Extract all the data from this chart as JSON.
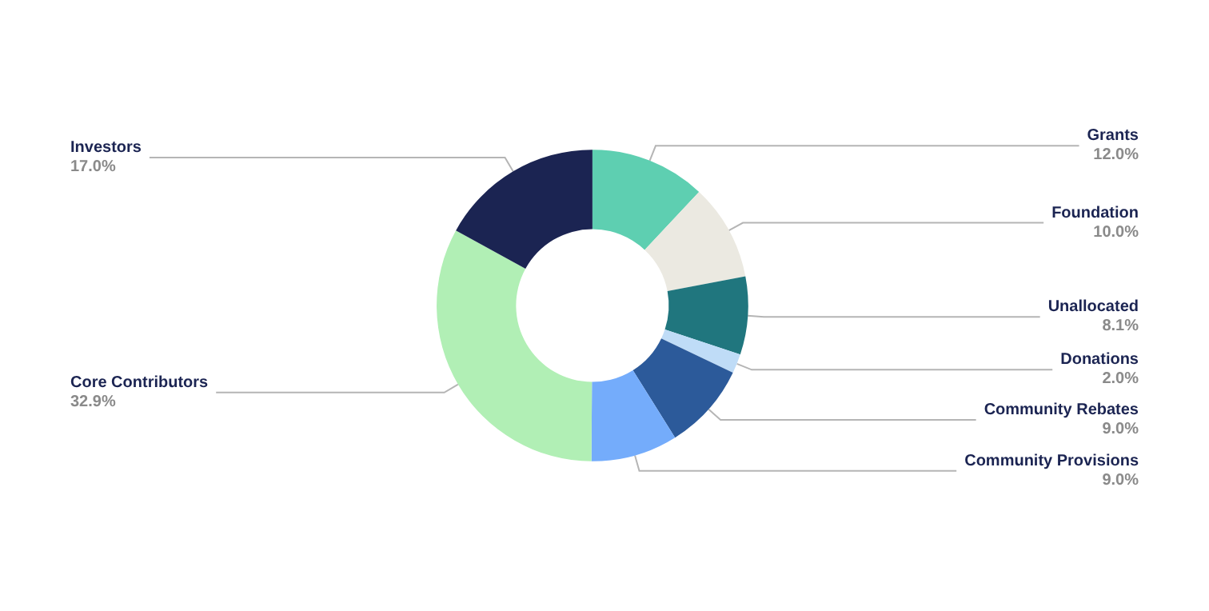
{
  "chart_data": {
    "type": "donut",
    "categories": [
      "Grants",
      "Foundation",
      "Unallocated",
      "Donations",
      "Community Rebates",
      "Community Provisions",
      "Core Contributors",
      "Investors"
    ],
    "values": [
      12.0,
      10.0,
      8.1,
      2.0,
      9.0,
      9.0,
      32.9,
      17.0
    ],
    "value_labels": [
      "12.0%",
      "10.0%",
      "8.1%",
      "2.0%",
      "9.0%",
      "9.0%",
      "32.9%",
      "17.0%"
    ],
    "colors": [
      "#5ecfb1",
      "#ebe9e1",
      "#20767e",
      "#bfdcf7",
      "#2c5a9a",
      "#74acfb",
      "#b1efb5",
      "#1b2452"
    ],
    "legend": false
  }
}
